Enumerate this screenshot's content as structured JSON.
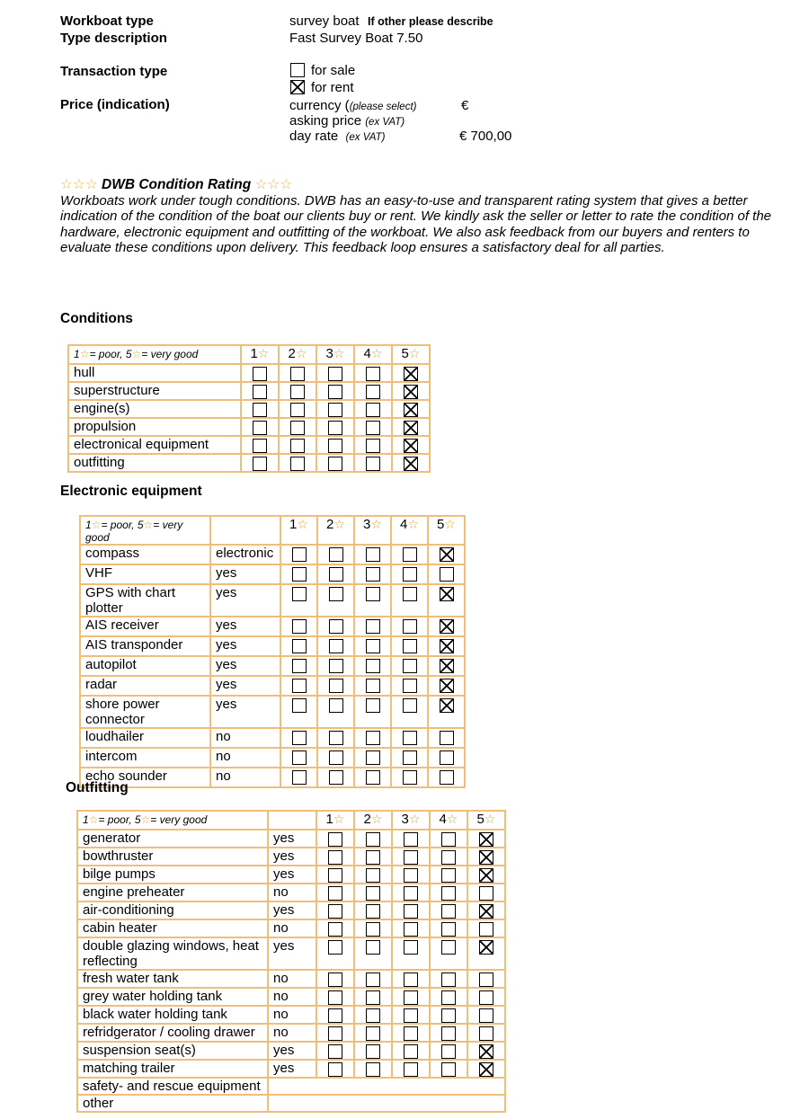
{
  "top": {
    "workboat_type": {
      "label": "Workboat type",
      "value": "survey boat",
      "note": "If other please describe"
    },
    "type_description": {
      "label": "Type description",
      "value": "Fast Survey Boat 7.50"
    },
    "transaction": {
      "label": "Transaction type",
      "options": [
        {
          "label": "for sale",
          "checked": false
        },
        {
          "label": "for rent",
          "checked": true
        }
      ]
    },
    "price": {
      "label": "Price (indication)",
      "currency": {
        "name": "currency (",
        "note": "(please select)",
        "value": "€"
      },
      "asking_price": {
        "name": "asking price",
        "note": "(ex VAT)",
        "value": ""
      },
      "day_rate": {
        "name": "day rate",
        "note": "(ex VAT)",
        "value": "€ 700,00"
      }
    }
  },
  "rating_intro": {
    "stars": "☆☆☆",
    "title": "DWB Condition Rating",
    "body": "Workboats work under tough conditions. DWB has an easy-to-use and transparent rating system that gives a better indication of the condition of the boat our clients buy or rent. We kindly ask the seller or letter to rate the condition of the hardware, electronic equipment and outfitting of the workboat. We also ask feedback from our buyers and renters to evaluate these conditions upon delivery. This feedback loop ensures a satisfactory deal for all parties."
  },
  "tables": {
    "star_char": "☆",
    "star_headers": [
      "1",
      "2",
      "3",
      "4",
      "5"
    ],
    "conditions": {
      "heading": "Conditions",
      "scale_note": "1☆= poor, 5☆= very good",
      "rows": [
        {
          "label": "hull",
          "rating": 5
        },
        {
          "label": "superstructure",
          "rating": 5
        },
        {
          "label": "engine(s)",
          "rating": 5
        },
        {
          "label": "propulsion",
          "rating": 5
        },
        {
          "label": "electronical equipment",
          "rating": 5
        },
        {
          "label": "outfitting",
          "rating": 5
        }
      ]
    },
    "electronic": {
      "heading": "Electronic equipment",
      "scale_note": "1☆= poor, 5☆= very good",
      "rows": [
        {
          "label": "compass",
          "value": "electronic",
          "rating": 5
        },
        {
          "label": "VHF",
          "value": "yes",
          "rating": 0
        },
        {
          "label": "GPS with chart plotter",
          "value": "yes",
          "rating": 5
        },
        {
          "label": "AIS receiver",
          "value": "yes",
          "rating": 5
        },
        {
          "label": "AIS transponder",
          "value": "yes",
          "rating": 5
        },
        {
          "label": "autopilot",
          "value": "yes",
          "rating": 5
        },
        {
          "label": "radar",
          "value": "yes",
          "rating": 5
        },
        {
          "label": "shore power connector",
          "value": "yes",
          "rating": 5
        },
        {
          "label": "loudhailer",
          "value": "no",
          "rating": 0
        },
        {
          "label": "intercom",
          "value": "no",
          "rating": 0
        },
        {
          "label": "echo sounder",
          "value": "no",
          "rating": 0
        }
      ]
    },
    "outfitting": {
      "heading": "Outfitting",
      "scale_note": "1☆= poor, 5☆= very good",
      "rows": [
        {
          "label": "generator",
          "value": "yes",
          "rating": 5
        },
        {
          "label": "bowthruster",
          "value": "yes",
          "rating": 5
        },
        {
          "label": "bilge pumps",
          "value": "yes",
          "rating": 5
        },
        {
          "label": "engine preheater",
          "value": "no",
          "rating": 0
        },
        {
          "label": "air-conditioning",
          "value": "yes",
          "rating": 5
        },
        {
          "label": "cabin heater",
          "value": "no",
          "rating": 0
        },
        {
          "label": "double glazing windows, heat reflecting",
          "value": "yes",
          "rating": 5
        },
        {
          "label": "fresh water tank",
          "value": "no",
          "rating": 0
        },
        {
          "label": "grey water holding tank",
          "value": "no",
          "rating": 0
        },
        {
          "label": "black water holding tank",
          "value": "no",
          "rating": 0
        },
        {
          "label": "refridgerator / cooling drawer",
          "value": "no",
          "rating": 0
        },
        {
          "label": "suspension seat(s)",
          "value": "yes",
          "rating": 5
        },
        {
          "label": "matching trailer",
          "value": "yes",
          "rating": 5
        },
        {
          "label": "safety- and rescue equipment",
          "value": "",
          "boxes": false
        },
        {
          "label": "other",
          "value": "",
          "boxes": false
        }
      ]
    }
  }
}
